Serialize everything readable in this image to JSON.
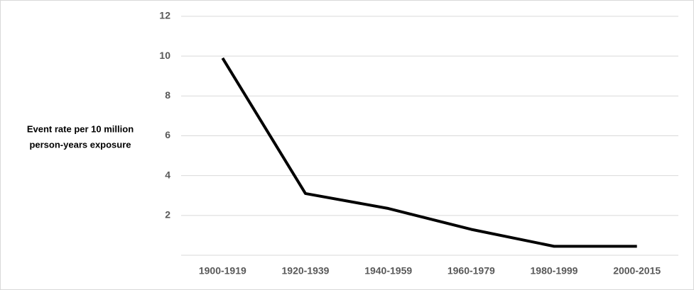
{
  "chart_data": {
    "type": "line",
    "ylabel": [
      "Event rate per 10 million",
      "person-years exposure"
    ],
    "categories": [
      "1900-1919",
      "1920-1939",
      "1940-1959",
      "1960-1979",
      "1980-1999",
      "2000-2015"
    ],
    "values": [
      9.9,
      3.1,
      2.35,
      1.3,
      0.45,
      0.45
    ],
    "color": "#000000",
    "ylim": [
      0,
      12
    ],
    "yticks": [
      2,
      4,
      6,
      8,
      10,
      12
    ],
    "grid": true
  }
}
